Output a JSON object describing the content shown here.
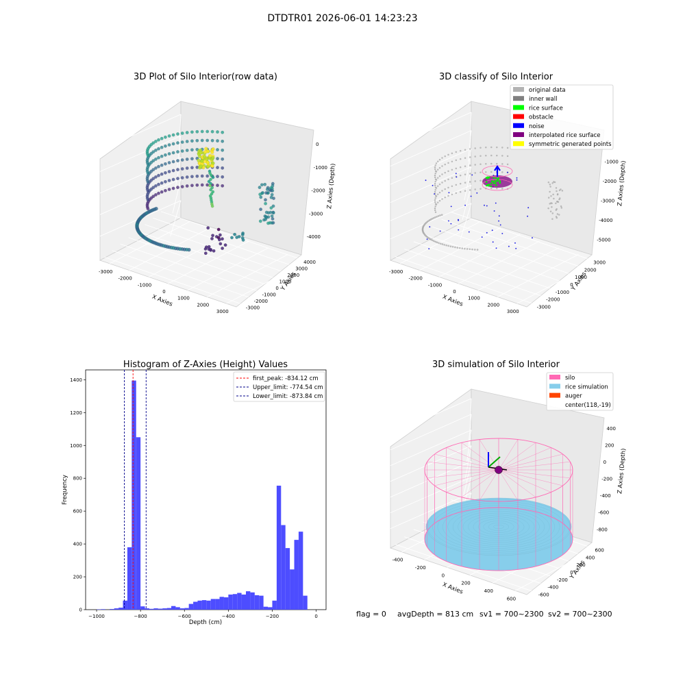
{
  "figure": {
    "suptitle": "DTDTR01 2026-06-01 14:23:23",
    "footer": {
      "flag": "flag = 0",
      "avg_depth": "avgDepth = 813 cm",
      "sv1": "sv1 = 700~2300",
      "sv2": "sv2 = 700~2300"
    }
  },
  "chart_data": [
    {
      "type": "scatter",
      "projection": "3d",
      "title": "3D Plot of Silo Interior(row data)",
      "xlabel": "X Axies",
      "ylabel": "Y Axies",
      "zlabel": "Z Axies (Depth)",
      "xticks": [
        -3000,
        -2000,
        -1000,
        0,
        1000,
        2000,
        3000
      ],
      "yticks": [
        -3000,
        -2000,
        -1000,
        0,
        1000,
        2000,
        3000,
        4000
      ],
      "zticks": [
        0,
        -1000,
        -2000,
        -3000,
        -4000
      ],
      "colormap": "viridis"
    },
    {
      "type": "scatter",
      "projection": "3d",
      "title": "3D classify of Silo Interior",
      "xlabel": "X Axies",
      "ylabel": "Y Axies",
      "zlabel": "Z Axies (Depth)",
      "xticks": [
        -3000,
        -2000,
        -1000,
        0,
        1000,
        2000,
        3000
      ],
      "yticks": [
        -3000,
        -2000,
        -1000,
        0,
        1000,
        2000,
        3000
      ],
      "zticks": [
        0,
        -1000,
        -2000,
        -3000,
        -4000,
        -5000
      ],
      "legend_position": "top-right",
      "legend": [
        {
          "label": "original data",
          "color": "#b3b3b3"
        },
        {
          "label": "inner wall",
          "color": "#808080"
        },
        {
          "label": "rice surface",
          "color": "#00ff00"
        },
        {
          "label": "obstacle",
          "color": "#ff0000"
        },
        {
          "label": "noise",
          "color": "#0000ff"
        },
        {
          "label": "interpolated rice surface",
          "color": "#800080"
        },
        {
          "label": "symmetric generated points",
          "color": "#ffff00"
        }
      ]
    },
    {
      "type": "bar",
      "title": "Histogram of Z-Axies (Height) Values",
      "xlabel": "Depth (cm)",
      "ylabel": "Frequency",
      "xlim": [
        -1050,
        45
      ],
      "ylim": [
        0,
        1460
      ],
      "xticks": [
        -1000,
        -800,
        -600,
        -400,
        -200,
        0
      ],
      "yticks": [
        0,
        200,
        400,
        600,
        800,
        1000,
        1200,
        1400
      ],
      "bar_color": "#4d4dff",
      "bins": {
        "width": 20,
        "left_edges": [
          -1000,
          -980,
          -960,
          -940,
          -920,
          -900,
          -880,
          -860,
          -840,
          -820,
          -800,
          -780,
          -760,
          -740,
          -720,
          -700,
          -680,
          -660,
          -640,
          -620,
          -600,
          -580,
          -560,
          -540,
          -520,
          -500,
          -480,
          -460,
          -440,
          -420,
          -400,
          -380,
          -360,
          -340,
          -320,
          -300,
          -280,
          -260,
          -240,
          -220,
          -200,
          -180,
          -160,
          -140,
          -120,
          -100,
          -80,
          -60,
          -40,
          -20
        ],
        "counts": [
          2,
          3,
          0,
          4,
          8,
          12,
          55,
          380,
          1395,
          1050,
          20,
          8,
          5,
          8,
          6,
          8,
          10,
          22,
          15,
          8,
          10,
          35,
          48,
          55,
          58,
          55,
          65,
          65,
          78,
          75,
          92,
          95,
          102,
          92,
          112,
          105,
          88,
          85,
          18,
          15,
          55,
          755,
          515,
          375,
          245,
          425,
          475,
          85,
          0,
          0
        ]
      },
      "vlines": [
        {
          "label": "first_peak: -834.12 cm",
          "x": -834.12,
          "color": "#ff0000"
        },
        {
          "label": "Upper_limit: -774.54 cm",
          "x": -774.54,
          "color": "#00008b"
        },
        {
          "label": "Lower_limit: -873.84 cm",
          "x": -873.84,
          "color": "#00008b"
        }
      ],
      "legend_position": "top-right"
    },
    {
      "type": "scatter",
      "projection": "3d",
      "title": "3D simulation of Silo Interior",
      "xlabel": "X Axies",
      "ylabel": "Y Axies",
      "zlabel": "Z Axies (Depth)",
      "xticks": [
        -400,
        -200,
        0,
        200,
        400,
        600
      ],
      "yticks": [
        -600,
        -400,
        -200,
        0,
        200,
        400,
        600
      ],
      "zticks": [
        400,
        200,
        0,
        -200,
        -400,
        -600,
        -800
      ],
      "legend_position": "top-right",
      "legend": [
        {
          "label": "silo",
          "color": "#ff69b4"
        },
        {
          "label": "rice simulation",
          "color": "#87ceeb"
        },
        {
          "label": "auger",
          "color": "#ff4500"
        },
        {
          "label": "center(118,-19)",
          "color": ""
        }
      ]
    }
  ]
}
